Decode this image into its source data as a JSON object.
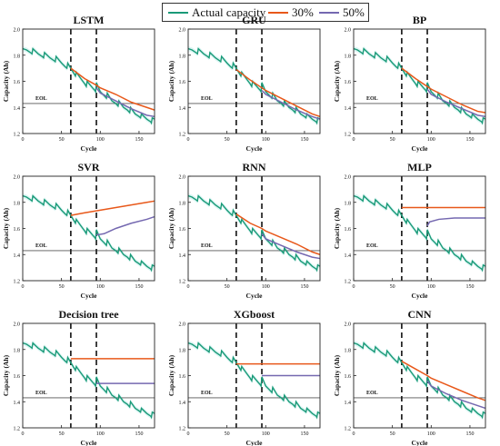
{
  "legend": {
    "items": [
      {
        "label": "Actual capacity",
        "color": "#1a9a78"
      },
      {
        "label": "30%",
        "color": "#e8581a"
      },
      {
        "label": "50%",
        "color": "#7468b0"
      }
    ]
  },
  "colors": {
    "actual": "#1a9a78",
    "p30": "#e8581a",
    "p50": "#7468b0",
    "band": "#bdecea"
  },
  "chart_data": [
    {
      "type": "line",
      "title": "LSTM",
      "xlabel": "Cycle",
      "ylabel": "Capacity (Ah)",
      "xlim": [
        0,
        170
      ],
      "ylim": [
        1.2,
        2.0
      ],
      "xticks": [
        "0",
        "50",
        "100",
        "150"
      ],
      "yticks": [
        "1.2",
        "1.4",
        "1.6",
        "1.8",
        "2.0"
      ],
      "eol_label": "EOL",
      "eol_value": 1.43,
      "split_cycles": [
        62,
        95
      ],
      "series": [
        {
          "name": "30%",
          "x": [
            62,
            80,
            95,
            100,
            120,
            140,
            160,
            170
          ],
          "y": [
            1.7,
            1.62,
            1.57,
            1.55,
            1.5,
            1.44,
            1.4,
            1.38
          ]
        },
        {
          "name": "50%",
          "x": [
            95,
            100,
            120,
            140,
            160,
            170
          ],
          "y": [
            1.55,
            1.51,
            1.45,
            1.39,
            1.34,
            1.33
          ]
        }
      ]
    },
    {
      "type": "line",
      "title": "GRU",
      "xlabel": "Cycle",
      "ylabel": "Capacity (Ah)",
      "xlim": [
        0,
        170
      ],
      "ylim": [
        1.2,
        2.0
      ],
      "xticks": [
        "0",
        "50",
        "100",
        "150"
      ],
      "yticks": [
        "1.2",
        "1.4",
        "1.6",
        "1.8",
        "2.0"
      ],
      "eol_label": "EOL",
      "eol_value": 1.43,
      "split_cycles": [
        62,
        95
      ],
      "series": [
        {
          "name": "30%",
          "x": [
            62,
            80,
            95,
            100,
            120,
            140,
            160,
            170
          ],
          "y": [
            1.69,
            1.61,
            1.55,
            1.53,
            1.47,
            1.41,
            1.35,
            1.33
          ]
        },
        {
          "name": "50%",
          "x": [
            95,
            100,
            120,
            140,
            160,
            170
          ],
          "y": [
            1.53,
            1.5,
            1.44,
            1.38,
            1.33,
            1.31
          ]
        }
      ]
    },
    {
      "type": "line",
      "title": "BP",
      "xlabel": "Cycle",
      "ylabel": "Capacity (Ah)",
      "xlim": [
        0,
        170
      ],
      "ylim": [
        1.2,
        2.0
      ],
      "xticks": [
        "0",
        "50",
        "100",
        "150"
      ],
      "yticks": [
        "1.2",
        "1.4",
        "1.6",
        "1.8",
        "2.0"
      ],
      "eol_label": "EOL",
      "eol_value": 1.43,
      "split_cycles": [
        62,
        95
      ],
      "series": [
        {
          "name": "30%",
          "x": [
            62,
            80,
            95,
            100,
            120,
            140,
            160,
            170
          ],
          "y": [
            1.7,
            1.62,
            1.56,
            1.54,
            1.48,
            1.42,
            1.37,
            1.36
          ]
        },
        {
          "name": "50%",
          "x": [
            95,
            100,
            120,
            140,
            160,
            170
          ],
          "y": [
            1.54,
            1.5,
            1.44,
            1.39,
            1.34,
            1.33
          ]
        }
      ]
    },
    {
      "type": "line",
      "title": "SVR",
      "xlabel": "Cycle",
      "ylabel": "Capacity (Ah)",
      "xlim": [
        0,
        170
      ],
      "ylim": [
        1.2,
        2.0
      ],
      "xticks": [
        "0",
        "50",
        "100",
        "150"
      ],
      "yticks": [
        "1.2",
        "1.4",
        "1.6",
        "1.8",
        "2.0"
      ],
      "eol_label": "EOL",
      "eol_value": 1.43,
      "split_cycles": [
        62,
        95
      ],
      "series": [
        {
          "name": "30%",
          "x": [
            62,
            80,
            100,
            120,
            140,
            160,
            170
          ],
          "y": [
            1.7,
            1.72,
            1.74,
            1.76,
            1.78,
            1.8,
            1.81
          ]
        },
        {
          "name": "50%",
          "x": [
            95,
            105,
            120,
            140,
            160,
            170
          ],
          "y": [
            1.55,
            1.56,
            1.6,
            1.64,
            1.67,
            1.69
          ]
        }
      ]
    },
    {
      "type": "line",
      "title": "RNN",
      "xlabel": "Cycle",
      "ylabel": "Capacity (Ah)",
      "xlim": [
        0,
        170
      ],
      "ylim": [
        1.2,
        2.0
      ],
      "xticks": [
        "0",
        "50",
        "100",
        "150"
      ],
      "yticks": [
        "1.2",
        "1.4",
        "1.6",
        "1.8",
        "2.0"
      ],
      "eol_label": "EOL",
      "eol_value": 1.43,
      "split_cycles": [
        62,
        95
      ],
      "series": [
        {
          "name": "30%",
          "x": [
            62,
            80,
            95,
            100,
            120,
            140,
            160,
            170
          ],
          "y": [
            1.71,
            1.64,
            1.6,
            1.58,
            1.53,
            1.48,
            1.42,
            1.4
          ]
        },
        {
          "name": "50%",
          "x": [
            95,
            100,
            120,
            140,
            160,
            170
          ],
          "y": [
            1.56,
            1.52,
            1.47,
            1.42,
            1.38,
            1.37
          ]
        }
      ]
    },
    {
      "type": "line",
      "title": "MLP",
      "xlabel": "Cycle",
      "ylabel": "Capacity (Ah)",
      "xlim": [
        0,
        170
      ],
      "ylim": [
        1.2,
        2.0
      ],
      "xticks": [
        "0",
        "50",
        "100",
        "150"
      ],
      "yticks": [
        "1.2",
        "1.4",
        "1.6",
        "1.8",
        "2.0"
      ],
      "eol_label": "EOL",
      "eol_value": 1.43,
      "split_cycles": [
        62,
        95
      ],
      "series": [
        {
          "name": "30%",
          "x": [
            62,
            170
          ],
          "y": [
            1.76,
            1.76
          ]
        },
        {
          "name": "50%",
          "x": [
            95,
            98,
            110,
            130,
            150,
            170
          ],
          "y": [
            1.62,
            1.65,
            1.67,
            1.68,
            1.68,
            1.68
          ]
        }
      ]
    },
    {
      "type": "line",
      "title": "Decision tree",
      "xlabel": "Cycle",
      "ylabel": "Capacity (Ah)",
      "xlim": [
        0,
        170
      ],
      "ylim": [
        1.2,
        2.0
      ],
      "xticks": [
        "0",
        "50",
        "100",
        "150"
      ],
      "yticks": [
        "1.2",
        "1.4",
        "1.6",
        "1.8",
        "2.0"
      ],
      "eol_label": "EOL",
      "eol_value": 1.43,
      "split_cycles": [
        62,
        95
      ],
      "series": [
        {
          "name": "30%",
          "x": [
            62,
            170
          ],
          "y": [
            1.73,
            1.73
          ]
        },
        {
          "name": "50%",
          "x": [
            95,
            170
          ],
          "y": [
            1.54,
            1.54
          ]
        }
      ]
    },
    {
      "type": "line",
      "title": "XGboost",
      "xlabel": "Cycle",
      "ylabel": "Capacity (Ah)",
      "xlim": [
        0,
        170
      ],
      "ylim": [
        1.2,
        2.0
      ],
      "xticks": [
        "0",
        "50",
        "100",
        "150"
      ],
      "yticks": [
        "1.2",
        "1.4",
        "1.6",
        "1.8",
        "2.0"
      ],
      "eol_label": "EOL",
      "eol_value": 1.43,
      "split_cycles": [
        62,
        95
      ],
      "series": [
        {
          "name": "30%",
          "x": [
            62,
            170
          ],
          "y": [
            1.69,
            1.69
          ]
        },
        {
          "name": "50%",
          "x": [
            95,
            170
          ],
          "y": [
            1.6,
            1.6
          ]
        }
      ]
    },
    {
      "type": "line",
      "title": "CNN",
      "xlabel": "Cycle",
      "ylabel": "Capacity (Ah)",
      "xlim": [
        0,
        170
      ],
      "ylim": [
        1.2,
        2.0
      ],
      "xticks": [
        "0",
        "50",
        "100",
        "150"
      ],
      "yticks": [
        "1.2",
        "1.4",
        "1.6",
        "1.8",
        "2.0"
      ],
      "eol_label": "EOL",
      "eol_value": 1.43,
      "split_cycles": [
        62,
        95
      ],
      "series": [
        {
          "name": "30%",
          "x": [
            62,
            80,
            95,
            100,
            120,
            140,
            160,
            170
          ],
          "y": [
            1.71,
            1.65,
            1.6,
            1.58,
            1.53,
            1.48,
            1.43,
            1.41
          ]
        },
        {
          "name": "50%",
          "x": [
            95,
            100,
            120,
            140,
            160,
            170
          ],
          "y": [
            1.56,
            1.52,
            1.46,
            1.41,
            1.37,
            1.35
          ]
        }
      ]
    }
  ],
  "actual_capacity": {
    "x": [
      0,
      5,
      10,
      12,
      13,
      20,
      25,
      27,
      28,
      35,
      40,
      42,
      43,
      50,
      55,
      57,
      58,
      62,
      66,
      68,
      69,
      75,
      80,
      82,
      83,
      90,
      93,
      94,
      95,
      100,
      105,
      108,
      109,
      115,
      120,
      123,
      124,
      130,
      135,
      138,
      139,
      145,
      150,
      152,
      153,
      160,
      165,
      166,
      167,
      170
    ],
    "y": [
      1.85,
      1.84,
      1.82,
      1.81,
      1.85,
      1.81,
      1.79,
      1.78,
      1.82,
      1.78,
      1.76,
      1.75,
      1.79,
      1.74,
      1.71,
      1.7,
      1.74,
      1.7,
      1.66,
      1.64,
      1.67,
      1.62,
      1.58,
      1.56,
      1.6,
      1.55,
      1.53,
      1.52,
      1.59,
      1.52,
      1.49,
      1.47,
      1.51,
      1.45,
      1.43,
      1.41,
      1.45,
      1.4,
      1.38,
      1.36,
      1.4,
      1.35,
      1.33,
      1.32,
      1.35,
      1.31,
      1.29,
      1.28,
      1.32,
      1.31
    ]
  }
}
